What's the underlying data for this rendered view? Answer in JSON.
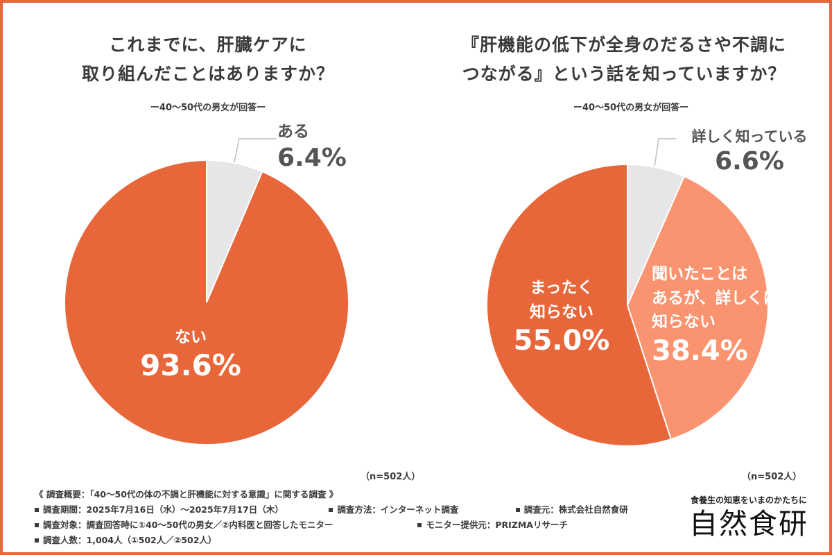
{
  "colors": {
    "border": "#e8673a",
    "orange": "#e8673a",
    "light_orange": "#fa9470",
    "gray": "#e6e6e8",
    "text": "#3a3a3a"
  },
  "chart_data": [
    {
      "type": "pie",
      "title_lines": [
        "これまでに、肝臓ケアに",
        "取り組んだことはありますか？"
      ],
      "subtitle": "ー40〜50代の男女が回答ー",
      "n_label": "（n=502人）",
      "slices": [
        {
          "name": "ある",
          "value": 6.4,
          "value_label": "6.4%",
          "color": "#e6e6e8"
        },
        {
          "name": "ない",
          "value": 93.6,
          "value_label": "93.6%",
          "color": "#e8673a"
        }
      ]
    },
    {
      "type": "pie",
      "title_lines": [
        "『肝機能の低下が全身のだるさや不調に",
        "つながる』という話を知っていますか？"
      ],
      "subtitle": "ー40〜50代の男女が回答ー",
      "n_label": "（n=502人）",
      "slices": [
        {
          "name": "詳しく知っている",
          "value": 6.6,
          "value_label": "6.6%",
          "color": "#e6e6e8"
        },
        {
          "name_lines": [
            "聞いたことは",
            "あるが、詳しくは",
            "知らない"
          ],
          "value": 38.4,
          "value_label": "38.4%",
          "color": "#fa9470"
        },
        {
          "name_lines": [
            "まったく",
            "知らない"
          ],
          "value": 55.0,
          "value_label": "55.0%",
          "color": "#e8673a"
        }
      ]
    }
  ],
  "footer": {
    "overview": "《 調査概要：「40〜50代の体の不調と肝機能に対する意識」に関する調査 》",
    "period": "調査期間：2025年7月16日（水）〜2025年7月17日（木）",
    "method": "調査方法：インターネット調査",
    "source": "調査元：株式会社自然食研",
    "target": "調査対象：調査回答時に①40〜50代の男女／②内科医と回答したモニター",
    "provider": "モニター提供元：PRIZMAリサーチ",
    "count": "調査人数：1,004人（①502人／②502人）"
  },
  "logo": {
    "tagline": "食養生の知恵をいまのかたちに",
    "name": "自然食研"
  }
}
